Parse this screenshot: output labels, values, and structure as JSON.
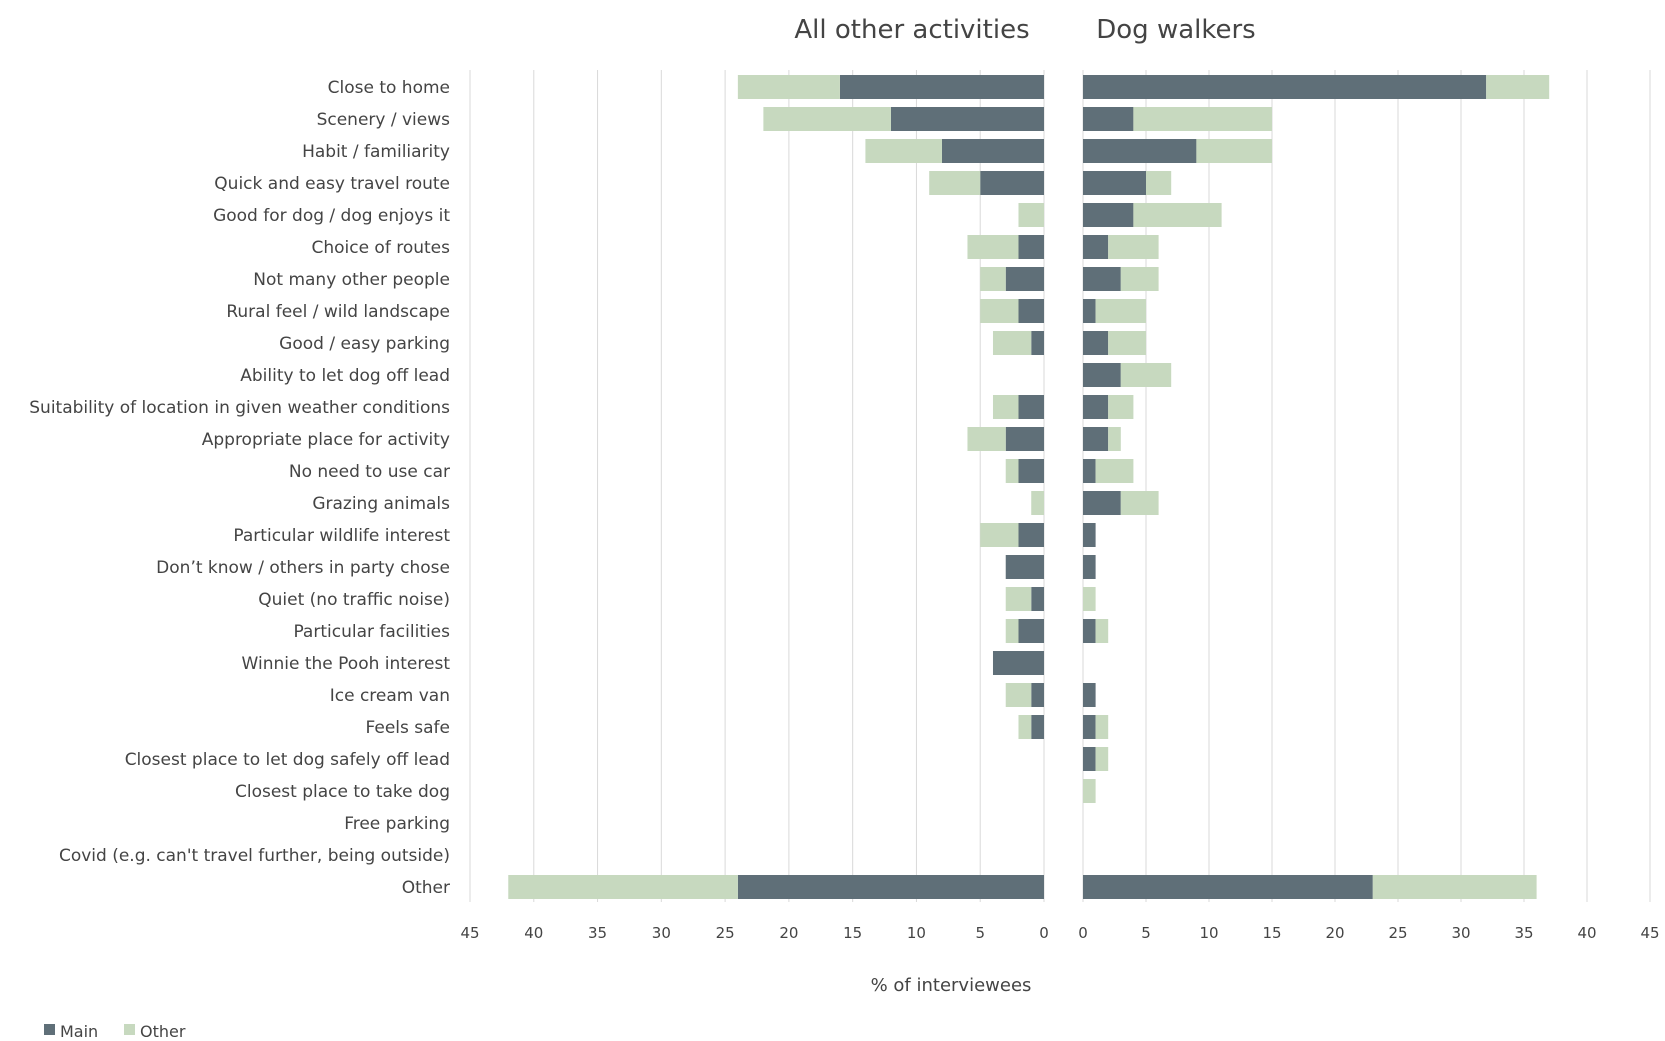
{
  "chart_data": {
    "type": "bar",
    "orientation": "horizontal",
    "layout": "back-to-back stacked",
    "xlabel": "% of interviewees",
    "xlim": [
      0,
      45
    ],
    "xticks": [
      0,
      5,
      10,
      15,
      20,
      25,
      30,
      35,
      40,
      45
    ],
    "grid": true,
    "legend_position": "bottom-left",
    "colors": {
      "Main": "#5f6f78",
      "Other": "#c7d9bf"
    },
    "series_names": [
      "Main",
      "Other"
    ],
    "categories": [
      "Close to home",
      "Scenery / views",
      "Habit / familiarity",
      "Quick and easy travel route",
      "Good for dog / dog enjoys it",
      "Choice of routes",
      "Not many other people",
      "Rural feel / wild landscape",
      "Good / easy parking",
      "Ability to let dog off lead",
      "Suitability of location in given weather conditions",
      "Appropriate place for activity",
      "No need to use car",
      "Grazing animals",
      "Particular wildlife interest",
      "Don’t know / others in party chose",
      "Quiet (no traffic noise)",
      "Particular facilities",
      "Winnie the Pooh interest",
      "Ice cream van",
      "Feels safe",
      "Closest place to let dog safely off lead",
      "Closest place to take dog",
      "Free parking",
      "Covid (e.g. can't travel further, being outside)",
      "Other"
    ],
    "panels": [
      {
        "title": "All other activities",
        "direction": "left",
        "series": [
          {
            "name": "Main",
            "values": [
              16,
              12,
              8,
              5,
              0,
              2,
              3,
              2,
              1,
              0,
              2,
              3,
              2,
              0,
              2,
              3,
              1,
              2,
              4,
              1,
              1,
              0,
              0,
              0,
              0,
              24
            ]
          },
          {
            "name": "Other",
            "values": [
              8,
              10,
              6,
              4,
              2,
              4,
              2,
              3,
              3,
              0,
              2,
              3,
              1,
              1,
              3,
              0,
              2,
              1,
              0,
              2,
              1,
              0,
              0,
              0,
              0,
              18
            ]
          }
        ]
      },
      {
        "title": "Dog walkers",
        "direction": "right",
        "series": [
          {
            "name": "Main",
            "values": [
              32,
              4,
              9,
              5,
              4,
              2,
              3,
              1,
              2,
              3,
              2,
              2,
              1,
              3,
              1,
              1,
              0,
              1,
              0,
              1,
              1,
              1,
              0,
              0,
              0,
              23
            ]
          },
          {
            "name": "Other",
            "values": [
              5,
              11,
              6,
              2,
              7,
              4,
              3,
              4,
              3,
              4,
              2,
              1,
              3,
              3,
              0,
              0,
              1,
              1,
              0,
              0,
              1,
              1,
              1,
              0,
              0,
              13
            ]
          }
        ]
      }
    ]
  }
}
